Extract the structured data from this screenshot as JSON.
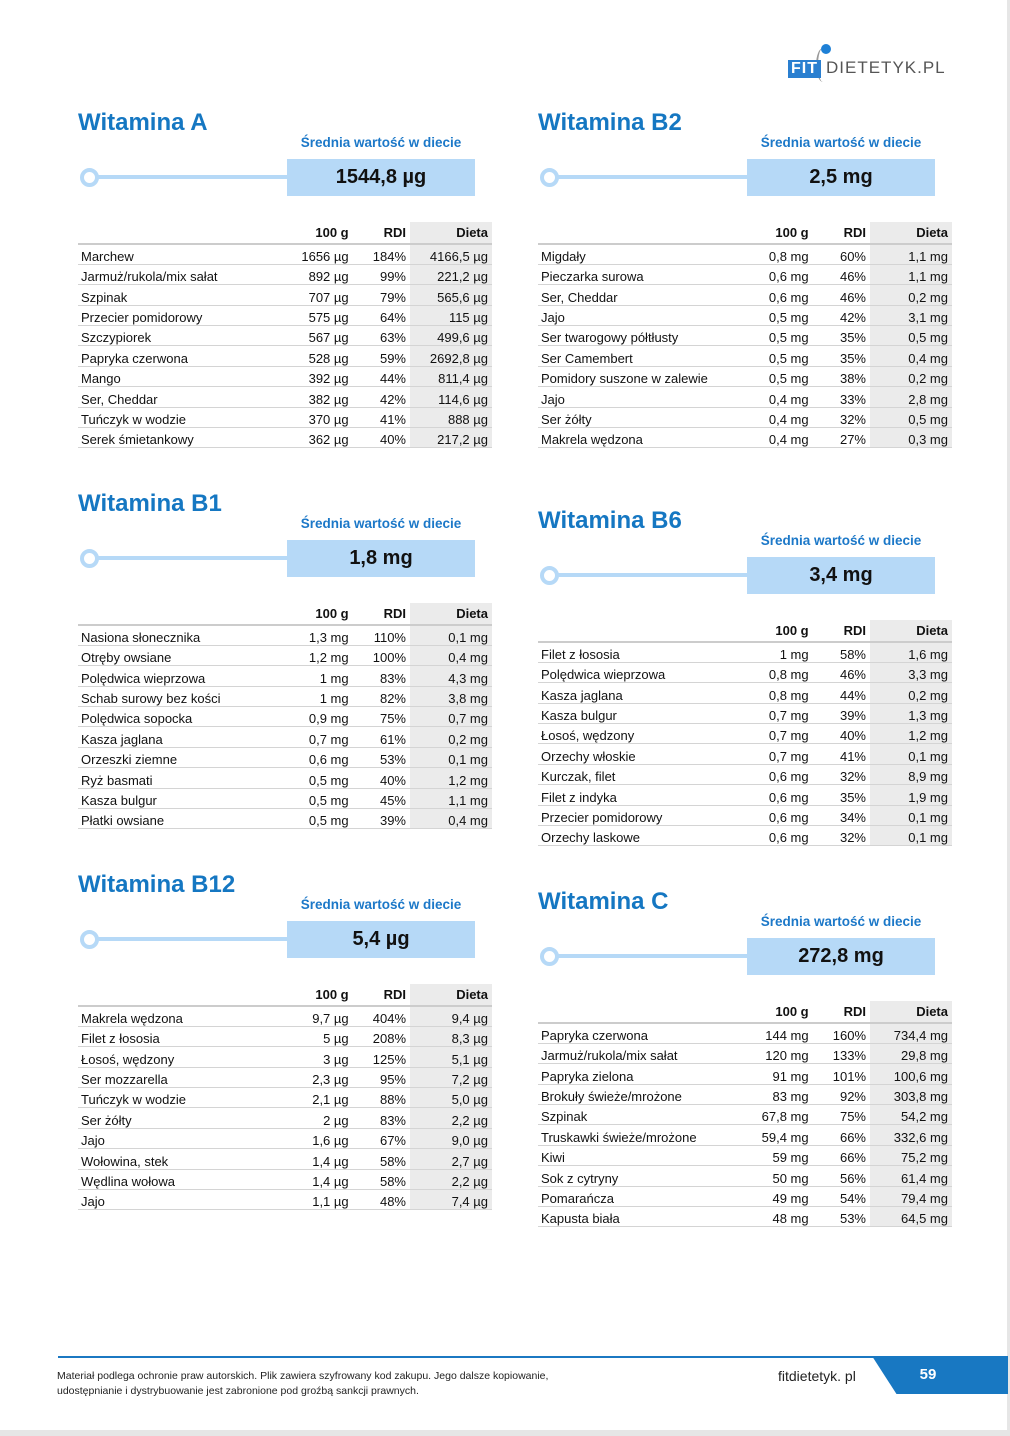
{
  "brand": {
    "logo_text": "FIT DIETETYK.PL",
    "fit": "FIT",
    "dietetyk": "DIETETYK.PL",
    "accent": "#1577c2",
    "bar_color": "#b6d9f7"
  },
  "columns": {
    "per100": "100 g",
    "rdi": "RDI",
    "diet": "Dieta"
  },
  "sections": [
    {
      "title": "Witamina A",
      "avg_label": "Średnia wartość w diecie",
      "avg_value": "1544,8 µg",
      "rows": [
        [
          "Marchew",
          "1656 µg",
          "184%",
          "4166,5 µg"
        ],
        [
          "Jarmuż/rukola/mix sałat",
          "892 µg",
          "99%",
          "221,2 µg"
        ],
        [
          "Szpinak",
          "707 µg",
          "79%",
          "565,6 µg"
        ],
        [
          "Przecier pomidorowy",
          "575 µg",
          "64%",
          "115 µg"
        ],
        [
          "Szczypiorek",
          "567 µg",
          "63%",
          "499,6 µg"
        ],
        [
          "Papryka czerwona",
          "528 µg",
          "59%",
          "2692,8 µg"
        ],
        [
          "Mango",
          "392 µg",
          "44%",
          "811,4 µg"
        ],
        [
          "Ser, Cheddar",
          "382 µg",
          "42%",
          "114,6 µg"
        ],
        [
          "Tuńczyk w wodzie",
          "370 µg",
          "41%",
          "888 µg"
        ],
        [
          "Serek śmietankowy",
          "362 µg",
          "40%",
          "217,2 µg"
        ]
      ]
    },
    {
      "title": "Witamina B1",
      "avg_label": "Średnia wartość w diecie",
      "avg_value": "1,8 mg",
      "rows": [
        [
          "Nasiona słonecznika",
          "1,3 mg",
          "110%",
          "0,1 mg"
        ],
        [
          "Otręby owsiane",
          "1,2 mg",
          "100%",
          "0,4 mg"
        ],
        [
          "Polędwica wieprzowa",
          "1 mg",
          "83%",
          "4,3 mg"
        ],
        [
          "Schab surowy bez kości",
          "1 mg",
          "82%",
          "3,8 mg"
        ],
        [
          "Polędwica sopocka",
          "0,9 mg",
          "75%",
          "0,7 mg"
        ],
        [
          "Kasza jaglana",
          "0,7 mg",
          "61%",
          "0,2 mg"
        ],
        [
          "Orzeszki ziemne",
          "0,6 mg",
          "53%",
          "0,1 mg"
        ],
        [
          "Ryż basmati",
          "0,5 mg",
          "40%",
          "1,2 mg"
        ],
        [
          "Kasza bulgur",
          "0,5 mg",
          "45%",
          "1,1 mg"
        ],
        [
          "Płatki owsiane",
          "0,5 mg",
          "39%",
          "0,4 mg"
        ]
      ]
    },
    {
      "title": "Witamina B12",
      "avg_label": "Średnia wartość w diecie",
      "avg_value": "5,4 µg",
      "rows": [
        [
          "Makrela wędzona",
          "9,7 µg",
          "404%",
          "9,4 µg"
        ],
        [
          "Filet z łososia",
          "5 µg",
          "208%",
          "8,3 µg"
        ],
        [
          "Łosoś, wędzony",
          "3 µg",
          "125%",
          "5,1 µg"
        ],
        [
          "Ser mozzarella",
          "2,3 µg",
          "95%",
          "7,2 µg"
        ],
        [
          "Tuńczyk w wodzie",
          "2,1 µg",
          "88%",
          "5,0 µg"
        ],
        [
          "Ser żółty",
          "2 µg",
          "83%",
          "2,2 µg"
        ],
        [
          "Jajo",
          "1,6 µg",
          "67%",
          "9,0 µg"
        ],
        [
          "Wołowina, stek",
          "1,4 µg",
          "58%",
          "2,7 µg"
        ],
        [
          "Wędlina wołowa",
          "1,4 µg",
          "58%",
          "2,2 µg"
        ],
        [
          "Jajo",
          "1,1 µg",
          "48%",
          "7,4 µg"
        ]
      ]
    },
    {
      "title": "Witamina B2",
      "avg_label": "Średnia wartość w diecie",
      "avg_value": "2,5 mg",
      "rows": [
        [
          "Migdały",
          "0,8 mg",
          "60%",
          "1,1 mg"
        ],
        [
          "Pieczarka surowa",
          "0,6 mg",
          "46%",
          "1,1 mg"
        ],
        [
          "Ser, Cheddar",
          "0,6 mg",
          "46%",
          "0,2 mg"
        ],
        [
          "Jajo",
          "0,5 mg",
          "42%",
          "3,1 mg"
        ],
        [
          "Ser twarogowy półtłusty",
          "0,5 mg",
          "35%",
          "0,5 mg"
        ],
        [
          "Ser Camembert",
          "0,5 mg",
          "35%",
          "0,4 mg"
        ],
        [
          "Pomidory suszone w zalewie",
          "0,5 mg",
          "38%",
          "0,2 mg"
        ],
        [
          "Jajo",
          "0,4 mg",
          "33%",
          "2,8 mg"
        ],
        [
          "Ser żółty",
          "0,4 mg",
          "32%",
          "0,5 mg"
        ],
        [
          "Makrela wędzona",
          "0,4 mg",
          "27%",
          "0,3 mg"
        ]
      ]
    },
    {
      "title": "Witamina B6",
      "avg_label": "Średnia wartość w diecie",
      "avg_value": "3,4 mg",
      "rows": [
        [
          "Filet z łososia",
          "1 mg",
          "58%",
          "1,6 mg"
        ],
        [
          "Polędwica wieprzowa",
          "0,8 mg",
          "46%",
          "3,3 mg"
        ],
        [
          "Kasza jaglana",
          "0,8 mg",
          "44%",
          "0,2 mg"
        ],
        [
          "Kasza bulgur",
          "0,7 mg",
          "39%",
          "1,3 mg"
        ],
        [
          "Łosoś, wędzony",
          "0,7 mg",
          "40%",
          "1,2 mg"
        ],
        [
          "Orzechy włoskie",
          "0,7 mg",
          "41%",
          "0,1 mg"
        ],
        [
          "Kurczak, filet",
          "0,6 mg",
          "32%",
          "8,9 mg"
        ],
        [
          "Filet z indyka",
          "0,6 mg",
          "35%",
          "1,9 mg"
        ],
        [
          "Przecier pomidorowy",
          "0,6 mg",
          "34%",
          "0,1 mg"
        ],
        [
          "Orzechy laskowe",
          "0,6 mg",
          "32%",
          "0,1 mg"
        ]
      ]
    },
    {
      "title": "Witamina C",
      "avg_label": "Średnia wartość w diecie",
      "avg_value": "272,8 mg",
      "rows": [
        [
          "Papryka czerwona",
          "144 mg",
          "160%",
          "734,4 mg"
        ],
        [
          "Jarmuż/rukola/mix sałat",
          "120 mg",
          "133%",
          "29,8 mg"
        ],
        [
          "Papryka zielona",
          "91 mg",
          "101%",
          "100,6 mg"
        ],
        [
          "Brokuły świeże/mrożone",
          "83 mg",
          "92%",
          "303,8 mg"
        ],
        [
          "Szpinak",
          "67,8 mg",
          "75%",
          "54,2 mg"
        ],
        [
          "Truskawki świeże/mrożone",
          "59,4 mg",
          "66%",
          "332,6 mg"
        ],
        [
          "Kiwi",
          "59 mg",
          "66%",
          "75,2 mg"
        ],
        [
          "Sok z cytryny",
          "50 mg",
          "56%",
          "61,4 mg"
        ],
        [
          "Pomarańcza",
          "49 mg",
          "54%",
          "79,4 mg"
        ],
        [
          "Kapusta biała",
          "48 mg",
          "53%",
          "64,5 mg"
        ]
      ]
    }
  ],
  "footer": {
    "notice": "Materiał podlega ochronie praw autorskich. Plik zawiera szyfrowany kod zakupu. Jego dalsze kopiowanie, udostępnianie i dystrybuowanie jest zabronione pod groźbą sankcji prawnych.",
    "site": "fitdietetyk. pl",
    "page_number": "59"
  }
}
